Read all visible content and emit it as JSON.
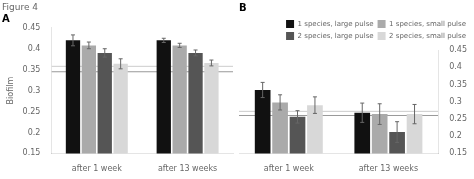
{
  "chart_data": [
    {
      "type": "bar",
      "title": "Figure 4",
      "subtitle": "A",
      "categories": [
        "after 1 week",
        "after 13 weeks"
      ],
      "series": [
        {
          "name": "1 species, large pulse",
          "color": "#111111",
          "values": [
            0.42,
            0.42
          ],
          "errors": [
            0.013,
            0.005
          ]
        },
        {
          "name": "1 species, small pulse",
          "color": "#aaaaaa",
          "values": [
            0.408,
            0.408
          ],
          "errors": [
            0.008,
            0.005
          ]
        },
        {
          "name": "2 species, large pulse",
          "color": "#555555",
          "values": [
            0.39,
            0.39
          ],
          "errors": [
            0.01,
            0.007
          ]
        },
        {
          "name": "2 species, small pulse",
          "color": "#d8d8d8",
          "values": [
            0.364,
            0.366
          ],
          "errors": [
            0.012,
            0.007
          ]
        }
      ],
      "ylabel": "Biofilm",
      "ylim": [
        0.15,
        0.45
      ],
      "yticks": [
        0.15,
        0.2,
        0.25,
        0.3,
        0.35,
        0.4,
        0.45
      ],
      "hlines": [
        {
          "value": 0.345,
          "color": "#999999"
        },
        {
          "value": 0.358,
          "color": "#cccccc"
        }
      ],
      "grid": false,
      "legend": false
    },
    {
      "type": "bar",
      "subtitle": "B",
      "categories": [
        "after 1 week",
        "after 13 weeks"
      ],
      "series": [
        {
          "name": "1 species, large pulse",
          "color": "#111111",
          "values": [
            0.334,
            0.268
          ],
          "errors": [
            0.022,
            0.028
          ]
        },
        {
          "name": "1 species, small pulse",
          "color": "#aaaaaa",
          "values": [
            0.298,
            0.264
          ],
          "errors": [
            0.022,
            0.03
          ]
        },
        {
          "name": "2 species, large pulse",
          "color": "#555555",
          "values": [
            0.256,
            0.212
          ],
          "errors": [
            0.018,
            0.03
          ]
        },
        {
          "name": "2 species, small pulse",
          "color": "#d8d8d8",
          "values": [
            0.29,
            0.264
          ],
          "errors": [
            0.024,
            0.028
          ]
        }
      ],
      "ylim": [
        0.15,
        0.45
      ],
      "yticks": [
        0.15,
        0.2,
        0.25,
        0.3,
        0.35,
        0.4,
        0.45
      ],
      "hlines": [
        {
          "value": 0.26,
          "color": "#999999"
        },
        {
          "value": 0.272,
          "color": "#cccccc"
        }
      ],
      "grid": false,
      "legend": "upper right"
    }
  ]
}
